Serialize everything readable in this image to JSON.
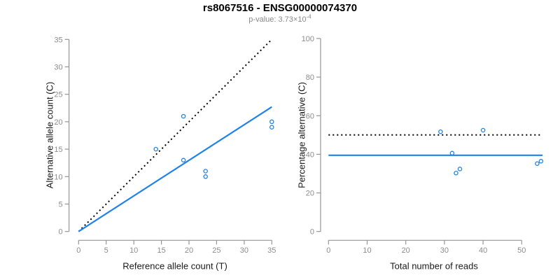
{
  "figure": {
    "title": "rs8067516 - ENSG00000074370",
    "subtitle_base": "p-value: 3.73×10",
    "subtitle_exponent": "-4"
  },
  "colors": {
    "accent_blue": "#1f83e8",
    "dotted_black": "#000000",
    "axis_line": "#969696",
    "tick_label": "#8c8c8c",
    "axis_title_text": "#1a1a1a",
    "subtitle_text": "#8a8a8a",
    "background": "#ffffff"
  },
  "chart_data": [
    {
      "type": "scatter",
      "panel": "left",
      "xlabel": "Reference allele count (T)",
      "ylabel": "Alternative allele count (C)",
      "xlim": [
        0,
        35
      ],
      "ylim": [
        0,
        35
      ],
      "xticks": [
        0,
        5,
        10,
        15,
        20,
        25,
        30,
        35
      ],
      "yticks": [
        0,
        5,
        10,
        15,
        20,
        25,
        30,
        35
      ],
      "grid": false,
      "legend": null,
      "marker": "open-circle",
      "points": [
        [
          14,
          15
        ],
        [
          19,
          21
        ],
        [
          19,
          13
        ],
        [
          23,
          11
        ],
        [
          23,
          10
        ],
        [
          35,
          20
        ],
        [
          35,
          19
        ]
      ],
      "lines": [
        {
          "name": "identity-line",
          "style": "dotted",
          "color": "#000000",
          "x1": 0,
          "y1": 0,
          "x2": 35,
          "y2": 35
        },
        {
          "name": "fit-line",
          "style": "solid",
          "color": "#1f83e8",
          "x1": 0,
          "y1": 0,
          "x2": 35,
          "y2": 22.7
        }
      ]
    },
    {
      "type": "scatter",
      "panel": "right",
      "xlabel": "Total number of reads",
      "ylabel": "Percentage alternative (C)",
      "xlim": [
        0,
        55.5
      ],
      "ylim": [
        0,
        100
      ],
      "xticks": [
        0,
        10,
        20,
        30,
        40,
        50
      ],
      "yticks": [
        0,
        20,
        40,
        60,
        80,
        100
      ],
      "grid": false,
      "legend": null,
      "marker": "open-circle",
      "points": [
        [
          29,
          51.7
        ],
        [
          32,
          40.6
        ],
        [
          33,
          30.3
        ],
        [
          34,
          32.4
        ],
        [
          40,
          52.5
        ],
        [
          54,
          35.2
        ],
        [
          55,
          36.4
        ]
      ],
      "lines": [
        {
          "name": "expected-50pct-line",
          "style": "dotted",
          "color": "#000000",
          "x1": 0,
          "y1": 50,
          "x2": 55.4,
          "y2": 50
        },
        {
          "name": "mean-percentage-line",
          "style": "solid",
          "color": "#1f83e8",
          "x1": 0,
          "y1": 39.5,
          "x2": 55.4,
          "y2": 39.5
        }
      ]
    }
  ]
}
